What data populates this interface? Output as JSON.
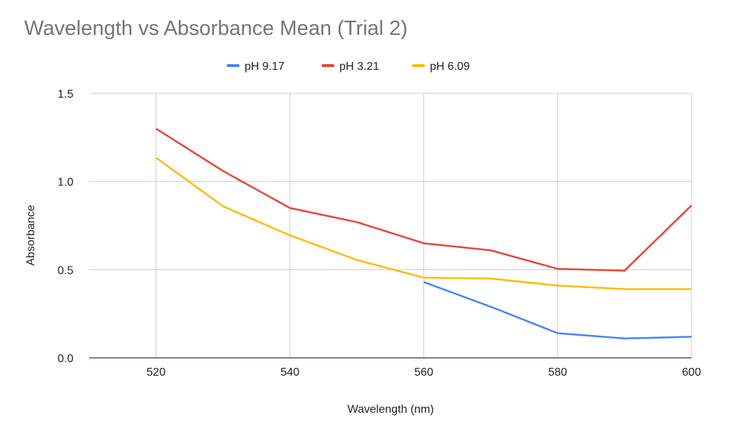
{
  "chart_data": {
    "type": "line",
    "title": "Wavelength vs Absorbance Mean (Trial 2)",
    "xlabel": "Wavelength (nm)",
    "ylabel": "Absorbance",
    "xlim": [
      510,
      600
    ],
    "ylim": [
      0,
      1.5
    ],
    "xticks": [
      "520",
      "540",
      "560",
      "580",
      "600"
    ],
    "yticks": [
      "0.0",
      "0.5",
      "1.0",
      "1.5"
    ],
    "grid": true,
    "legend_position": "top",
    "x": [
      520,
      530,
      540,
      550,
      560,
      570,
      580,
      590,
      600
    ],
    "series": [
      {
        "name": "pH 9.17",
        "color": "#4285f4",
        "values": [
          null,
          null,
          null,
          null,
          0.43,
          0.29,
          0.14,
          0.11,
          0.12
        ]
      },
      {
        "name": "pH 3.21",
        "color": "#ea4335",
        "values": [
          1.3,
          1.06,
          0.85,
          0.77,
          0.65,
          0.61,
          0.505,
          0.495,
          0.865
        ]
      },
      {
        "name": "pH 6.09",
        "color": "#fbbc04",
        "values": [
          1.135,
          0.86,
          0.695,
          0.555,
          0.455,
          0.45,
          0.41,
          0.39,
          0.39
        ]
      }
    ]
  }
}
